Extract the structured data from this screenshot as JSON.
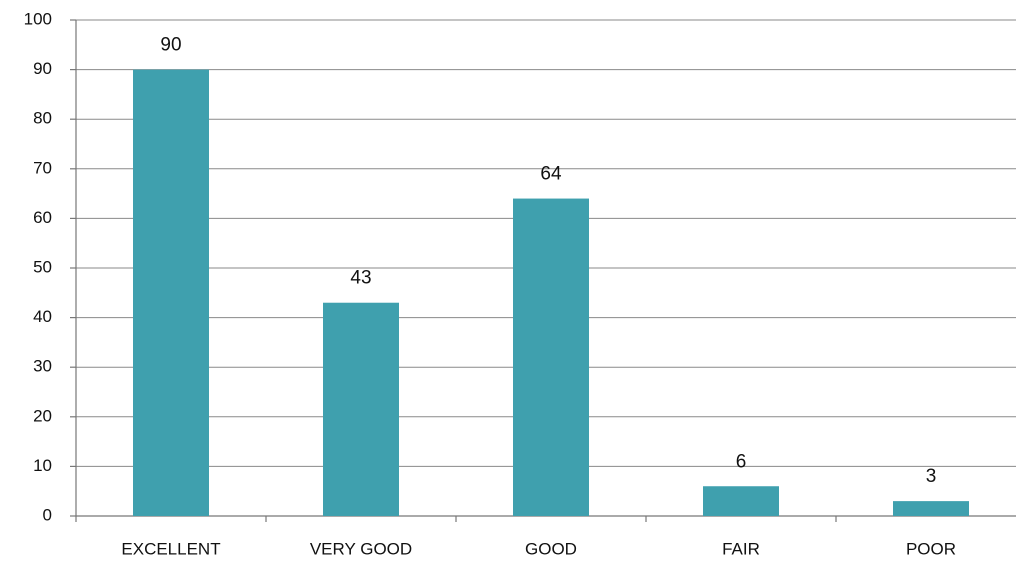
{
  "chart_data": {
    "type": "bar",
    "categories": [
      "EXCELLENT",
      "VERY GOOD",
      "GOOD",
      "FAIR",
      "POOR"
    ],
    "values": [
      90,
      43,
      64,
      6,
      3
    ],
    "color": "#3fa0ae",
    "ylim": [
      0,
      100
    ],
    "yticks": [
      0,
      10,
      20,
      30,
      40,
      50,
      60,
      70,
      80,
      90,
      100
    ],
    "grid": true
  }
}
